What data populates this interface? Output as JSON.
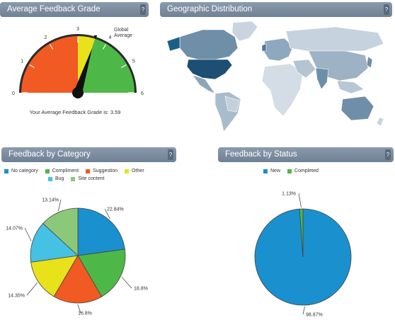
{
  "panels": {
    "grade": {
      "title": "Average Feedback Grade",
      "help": "?"
    },
    "geo": {
      "title": "Geographic Distribution",
      "help": "?"
    },
    "category": {
      "title": "Feedback by Category",
      "help": "?"
    },
    "status": {
      "title": "Feedback by Status",
      "help": "?"
    }
  },
  "gauge": {
    "ticks": [
      "0",
      "1",
      "2",
      "3",
      "4",
      "5",
      "6"
    ],
    "global_label": "Global Average",
    "global_line1": "Global",
    "global_line2": "Average",
    "caption": "Your Average Feedback Grade is: 3.59",
    "value": 3.59,
    "min": 0,
    "max": 6
  },
  "colors": {
    "blue": "#1a90cf",
    "green": "#4db848",
    "orange": "#f15a22",
    "yellow": "#e8e21a",
    "cyan": "#45c1e3",
    "lightgreen": "#8bc87a",
    "header": "#7a8a9c"
  },
  "chart_data": [
    {
      "type": "pie",
      "title": "Feedback by Category",
      "legend": [
        "No category",
        "Compliment",
        "Suggestion",
        "Other",
        "Bug",
        "Site content"
      ],
      "values": [
        22.84,
        18.8,
        16.8,
        14.35,
        14.07,
        13.14
      ],
      "labels": [
        "22.84%",
        "18.8%",
        "16.8%",
        "14.35%",
        "14.07%",
        "13.14%"
      ],
      "series_colors": [
        "#1a90cf",
        "#4db848",
        "#f15a22",
        "#e8e21a",
        "#45c1e3",
        "#8bc87a"
      ]
    },
    {
      "type": "pie",
      "title": "Feedback by Status",
      "legend": [
        "New",
        "Completed"
      ],
      "values": [
        98.87,
        1.13
      ],
      "labels": [
        "98.87%",
        "1.13%"
      ],
      "series_colors": [
        "#1a90cf",
        "#4db848"
      ]
    }
  ]
}
